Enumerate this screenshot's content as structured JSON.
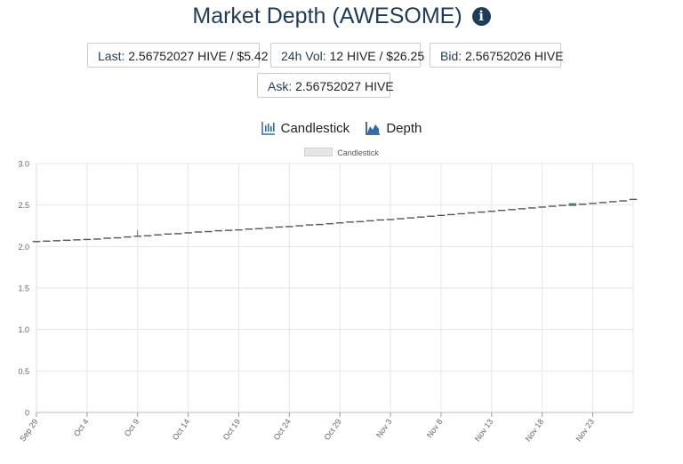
{
  "header": {
    "title": "Market Depth (AWESOME)",
    "info_icon": "info-circle-icon"
  },
  "stats": {
    "last": {
      "label": "Last:",
      "value": "2.56752027 HIVE / $5.42"
    },
    "vol": {
      "label": "24h Vol:",
      "value": "12 HIVE / $26.25"
    },
    "bid": {
      "label": "Bid:",
      "value": "2.56752026 HIVE"
    },
    "ask": {
      "label": "Ask:",
      "value": "2.56752027 HIVE"
    }
  },
  "tabs": {
    "candlestick": "Candlestick",
    "depth": "Depth"
  },
  "colors": {
    "accent": "#1e3b5a",
    "icon": "#2a6cb5",
    "candle_up": "#4b7a68",
    "candle_line": "#555555"
  },
  "chart_data": {
    "type": "candlestick",
    "legend": [
      "Candlestick"
    ],
    "legend_position": "top-center",
    "ylim": [
      0,
      3.0
    ],
    "yticks": [
      "0",
      "0.5",
      "1.0",
      "1.5",
      "2.0",
      "2.5",
      "3.0"
    ],
    "xlim": [
      "2023-09-29",
      "2023-11-27"
    ],
    "xticks": [
      "Sep 29",
      "Oct 4",
      "Oct 9",
      "Oct 14",
      "Oct 19",
      "Oct 24",
      "Oct 29",
      "Nov 3",
      "Nov 8",
      "Nov 13",
      "Nov 18",
      "Nov 23"
    ],
    "grid": true,
    "series": [
      {
        "values": [
          {
            "x": "2023-09-29",
            "y": 2.06
          },
          {
            "x": "2023-09-30",
            "y": 2.065
          },
          {
            "x": "2023-10-01",
            "y": 2.07
          },
          {
            "x": "2023-10-02",
            "y": 2.075
          },
          {
            "x": "2023-10-03",
            "y": 2.08
          },
          {
            "x": "2023-10-04",
            "y": 2.085
          },
          {
            "x": "2023-10-05",
            "y": 2.09
          },
          {
            "x": "2023-10-06",
            "y": 2.1
          },
          {
            "x": "2023-10-07",
            "y": 2.105
          },
          {
            "x": "2023-10-08",
            "y": 2.115
          },
          {
            "x": "2023-10-09",
            "y": 2.125,
            "high": 2.2
          },
          {
            "x": "2023-10-10",
            "y": 2.13
          },
          {
            "x": "2023-10-11",
            "y": 2.14
          },
          {
            "x": "2023-10-12",
            "y": 2.15
          },
          {
            "x": "2023-10-13",
            "y": 2.155
          },
          {
            "x": "2023-10-14",
            "y": 2.165
          },
          {
            "x": "2023-10-15",
            "y": 2.175
          },
          {
            "x": "2023-10-16",
            "y": 2.18
          },
          {
            "x": "2023-10-17",
            "y": 2.19
          },
          {
            "x": "2023-10-18",
            "y": 2.195
          },
          {
            "x": "2023-10-19",
            "y": 2.2
          },
          {
            "x": "2023-10-20",
            "y": 2.21
          },
          {
            "x": "2023-10-21",
            "y": 2.215
          },
          {
            "x": "2023-10-22",
            "y": 2.225
          },
          {
            "x": "2023-10-23",
            "y": 2.235
          },
          {
            "x": "2023-10-24",
            "y": 2.24
          },
          {
            "x": "2023-10-25",
            "y": 2.25
          },
          {
            "x": "2023-10-26",
            "y": 2.26
          },
          {
            "x": "2023-10-27",
            "y": 2.265
          },
          {
            "x": "2023-10-28",
            "y": 2.275
          },
          {
            "x": "2023-10-29",
            "y": 2.285
          },
          {
            "x": "2023-10-30",
            "y": 2.295
          },
          {
            "x": "2023-10-31",
            "y": 2.3
          },
          {
            "x": "2023-11-01",
            "y": 2.31
          },
          {
            "x": "2023-11-02",
            "y": 2.32
          },
          {
            "x": "2023-11-03",
            "y": 2.325
          },
          {
            "x": "2023-11-04",
            "y": 2.335
          },
          {
            "x": "2023-11-05",
            "y": 2.345
          },
          {
            "x": "2023-11-06",
            "y": 2.355
          },
          {
            "x": "2023-11-07",
            "y": 2.365
          },
          {
            "x": "2023-11-08",
            "y": 2.375
          },
          {
            "x": "2023-11-09",
            "y": 2.385
          },
          {
            "x": "2023-11-10",
            "y": 2.395
          },
          {
            "x": "2023-11-11",
            "y": 2.405
          },
          {
            "x": "2023-11-12",
            "y": 2.415
          },
          {
            "x": "2023-11-13",
            "y": 2.425
          },
          {
            "x": "2023-11-14",
            "y": 2.435
          },
          {
            "x": "2023-11-15",
            "y": 2.445
          },
          {
            "x": "2023-11-16",
            "y": 2.455
          },
          {
            "x": "2023-11-17",
            "y": 2.465
          },
          {
            "x": "2023-11-18",
            "y": 2.475
          },
          {
            "x": "2023-11-19",
            "y": 2.485
          },
          {
            "x": "2023-11-20",
            "y": 2.495
          },
          {
            "x": "2023-11-21",
            "y": 2.5,
            "up": true
          },
          {
            "x": "2023-11-22",
            "y": 2.51
          },
          {
            "x": "2023-11-23",
            "y": 2.52
          },
          {
            "x": "2023-11-24",
            "y": 2.53
          },
          {
            "x": "2023-11-25",
            "y": 2.54
          },
          {
            "x": "2023-11-26",
            "y": 2.55
          },
          {
            "x": "2023-11-27",
            "y": 2.5675
          }
        ]
      }
    ]
  }
}
